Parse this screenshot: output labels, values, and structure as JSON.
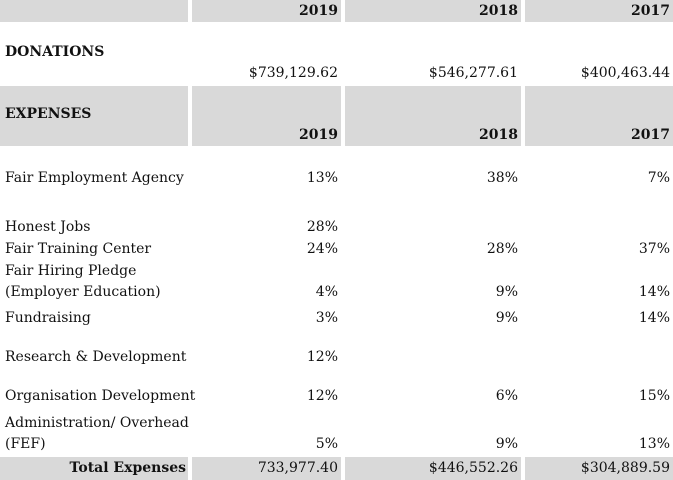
{
  "header": {
    "years": [
      "2019",
      "2018",
      "2017"
    ]
  },
  "donations": {
    "label": "DONATIONS",
    "values": [
      "$739,129.62",
      "$546,277.61",
      "$400,463.44"
    ]
  },
  "expenses": {
    "label": "EXPENSES",
    "years": [
      "2019",
      "2018",
      "2017"
    ],
    "rows": [
      {
        "label": "Fair Employment Agency",
        "values": [
          "13%",
          "38%",
          "7%"
        ]
      },
      {
        "label": "Honest Jobs",
        "values": [
          "28%",
          "",
          ""
        ]
      },
      {
        "label": "Fair Training Center",
        "values": [
          "24%",
          "28%",
          "37%"
        ]
      },
      {
        "label": "Fair Hiring Pledge",
        "label2": "(Employer Education)",
        "values": [
          "4%",
          "9%",
          "14%"
        ]
      },
      {
        "label": "Fundraising",
        "values": [
          "3%",
          "9%",
          "14%"
        ]
      },
      {
        "label": "Research & Development",
        "values": [
          "12%",
          "",
          ""
        ]
      },
      {
        "label": "Organisation Development",
        "values": [
          "12%",
          "6%",
          "15%"
        ]
      },
      {
        "label": "Administration/ Overhead",
        "label2": "(FEF)",
        "values": [
          "5%",
          "9%",
          "13%"
        ]
      }
    ]
  },
  "total": {
    "label": "Total Expenses",
    "values": [
      "733,977.40",
      "$446,552.26",
      "$304,889.59"
    ]
  }
}
